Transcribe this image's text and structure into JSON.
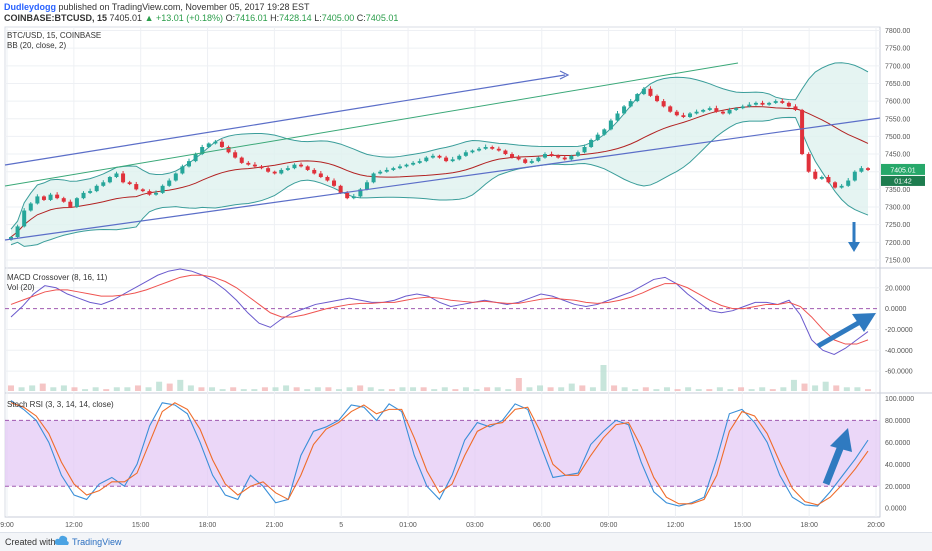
{
  "header": {
    "author": "Dudleydogg",
    "published": "published on TradingView.com, November 05, 2017 19:28 EST",
    "symbol": "COINBASE:BTCUSD, 15",
    "last": "7405.01",
    "change": "▲ +13.01 (+0.18%)",
    "o_label": "O:",
    "o_value": "7416.01",
    "h_label": "H:",
    "h_value": "7428.14",
    "l_label": "L:",
    "l_value": "7405.00",
    "c_label": "C:",
    "c_value": "7405.01"
  },
  "legend": {
    "symbol_line": "BTC/USD, 15, COINBASE",
    "bb": "BB (20, close, 2)",
    "macd": "MACD Crossover (8, 16, 11)",
    "vol": "Vol (20)",
    "stoch": "Stoch RSI (3, 3, 14, 14, close)"
  },
  "price_badge": {
    "value": "7405.01",
    "timer": "01:42"
  },
  "footer": {
    "created_with": "Created with",
    "brand": "TradingView"
  },
  "colors": {
    "up": "#26a69a",
    "down": "#e0313b",
    "bb_band": "#3a9d9a",
    "bb_basis": "#b22222",
    "macd": "#6a5acd",
    "signal": "#ef5350",
    "stoch_k": "#3a8fd8",
    "stoch_d": "#ef6c2a",
    "stoch_fill": "#e3c6f5",
    "annotation": "#2f7ac0"
  },
  "icons": {
    "logo": "tradingview-cloud-icon"
  },
  "chart_data": [
    {
      "type": "candlestick",
      "name": "BTC/USD price",
      "ylim": [
        7130,
        7810
      ],
      "yticks": [
        7150,
        7200,
        7250,
        7300,
        7350,
        7400,
        7450,
        7500,
        7550,
        7600,
        7650,
        7700,
        7750,
        7800
      ],
      "x_labels": [
        "9:00",
        "12:00",
        "15:00",
        "18:00",
        "21:00",
        "5",
        "01:00",
        "03:00",
        "06:00",
        "09:00",
        "12:00",
        "15:00",
        "18:00",
        "20:00"
      ],
      "grid": true,
      "closes": [
        7215,
        7245,
        7290,
        7310,
        7330,
        7320,
        7335,
        7325,
        7315,
        7300,
        7325,
        7340,
        7345,
        7360,
        7370,
        7385,
        7395,
        7370,
        7365,
        7350,
        7345,
        7335,
        7340,
        7360,
        7375,
        7395,
        7415,
        7430,
        7450,
        7470,
        7480,
        7485,
        7470,
        7455,
        7440,
        7425,
        7420,
        7415,
        7410,
        7400,
        7395,
        7405,
        7410,
        7420,
        7415,
        7405,
        7395,
        7385,
        7375,
        7360,
        7340,
        7325,
        7330,
        7350,
        7370,
        7395,
        7400,
        7405,
        7410,
        7415,
        7420,
        7425,
        7430,
        7440,
        7445,
        7440,
        7430,
        7435,
        7445,
        7455,
        7460,
        7465,
        7470,
        7465,
        7460,
        7450,
        7440,
        7435,
        7425,
        7430,
        7440,
        7450,
        7445,
        7440,
        7435,
        7445,
        7455,
        7470,
        7490,
        7505,
        7520,
        7545,
        7565,
        7585,
        7600,
        7620,
        7635,
        7615,
        7600,
        7585,
        7570,
        7560,
        7555,
        7565,
        7570,
        7575,
        7580,
        7570,
        7565,
        7575,
        7580,
        7585,
        7590,
        7595,
        7590,
        7595,
        7600,
        7595,
        7585,
        7575,
        7450,
        7400,
        7380,
        7385,
        7370,
        7355,
        7360,
        7375,
        7400,
        7410,
        7405.01
      ]
    },
    {
      "type": "line",
      "name": "MACD Crossover",
      "ylim": [
        -80,
        38
      ],
      "yticks": [
        20,
        0,
        -20,
        -40,
        -60
      ],
      "zero_line": true,
      "series": [
        {
          "name": "MACD",
          "values": [
            -8,
            2,
            14,
            22,
            20,
            14,
            10,
            6,
            4,
            8,
            14,
            20,
            26,
            32,
            36,
            38,
            36,
            32,
            26,
            18,
            8,
            -4,
            -14,
            -18,
            -10,
            -4,
            0,
            4,
            6,
            8,
            10,
            8,
            6,
            6,
            8,
            12,
            14,
            12,
            6,
            2,
            4,
            6,
            8,
            6,
            4,
            6,
            10,
            14,
            12,
            8,
            4,
            2,
            4,
            8,
            12,
            16,
            22,
            28,
            30,
            24,
            14,
            6,
            -2,
            -4,
            -2,
            2,
            6,
            6,
            4,
            8,
            -6,
            -30,
            -40,
            -44,
            -38,
            -30,
            -22
          ]
        },
        {
          "name": "Signal",
          "values": [
            4,
            8,
            12,
            16,
            18,
            18,
            16,
            14,
            12,
            12,
            13,
            15,
            18,
            22,
            26,
            30,
            32,
            32,
            30,
            26,
            20,
            12,
            4,
            -4,
            -8,
            -8,
            -6,
            -3,
            0,
            2,
            4,
            5,
            5,
            6,
            6,
            8,
            10,
            11,
            10,
            8,
            7,
            6,
            7,
            6,
            5,
            5,
            7,
            9,
            10,
            9,
            8,
            6,
            5,
            6,
            8,
            11,
            15,
            20,
            24,
            24,
            20,
            14,
            8,
            3,
            0,
            0,
            2,
            4,
            4,
            6,
            2,
            -8,
            -20,
            -30,
            -34,
            -34,
            -30
          ]
        }
      ]
    },
    {
      "type": "bar",
      "name": "Volume",
      "values": [
        3,
        2,
        3,
        4,
        2,
        3,
        2,
        1,
        2,
        1,
        2,
        2,
        3,
        2,
        5,
        4,
        6,
        3,
        2,
        2,
        1,
        2,
        1,
        1,
        2,
        2,
        3,
        2,
        1,
        2,
        2,
        1,
        2,
        3,
        2,
        1,
        1,
        2,
        2,
        2,
        1,
        2,
        1,
        2,
        1,
        2,
        2,
        1,
        7,
        2,
        3,
        2,
        2,
        4,
        3,
        2,
        14,
        3,
        2,
        1,
        2,
        1,
        2,
        1,
        2,
        1,
        1,
        2,
        1,
        2,
        1,
        2,
        1,
        2,
        6,
        4,
        3,
        5,
        3,
        2,
        2,
        1
      ]
    },
    {
      "type": "line",
      "name": "Stoch RSI",
      "ylim": [
        -8,
        104
      ],
      "yticks": [
        100,
        80,
        60,
        40,
        20,
        0
      ],
      "bands": [
        20,
        80
      ],
      "series": [
        {
          "name": "K",
          "values": [
            98,
            90,
            80,
            60,
            30,
            12,
            8,
            22,
            28,
            20,
            40,
            75,
            96,
            94,
            86,
            60,
            30,
            12,
            8,
            30,
            20,
            5,
            8,
            48,
            70,
            74,
            80,
            94,
            92,
            80,
            95,
            88,
            48,
            20,
            8,
            30,
            62,
            78,
            74,
            80,
            95,
            90,
            58,
            28,
            30,
            32,
            58,
            70,
            80,
            76,
            42,
            15,
            5,
            2,
            5,
            10,
            45,
            86,
            90,
            78,
            60,
            30,
            10,
            3,
            2,
            15,
            30,
            45,
            62
          ]
        },
        {
          "name": "D",
          "values": [
            96,
            92,
            84,
            68,
            42,
            22,
            12,
            16,
            24,
            24,
            32,
            60,
            88,
            96,
            90,
            72,
            44,
            22,
            12,
            20,
            24,
            14,
            8,
            30,
            58,
            72,
            78,
            88,
            94,
            86,
            90,
            90,
            64,
            34,
            14,
            22,
            48,
            70,
            76,
            78,
            90,
            92,
            70,
            40,
            30,
            30,
            48,
            64,
            76,
            78,
            56,
            28,
            10,
            4,
            4,
            8,
            30,
            70,
            88,
            84,
            68,
            42,
            18,
            6,
            3,
            10,
            22,
            36,
            52
          ]
        }
      ]
    }
  ]
}
